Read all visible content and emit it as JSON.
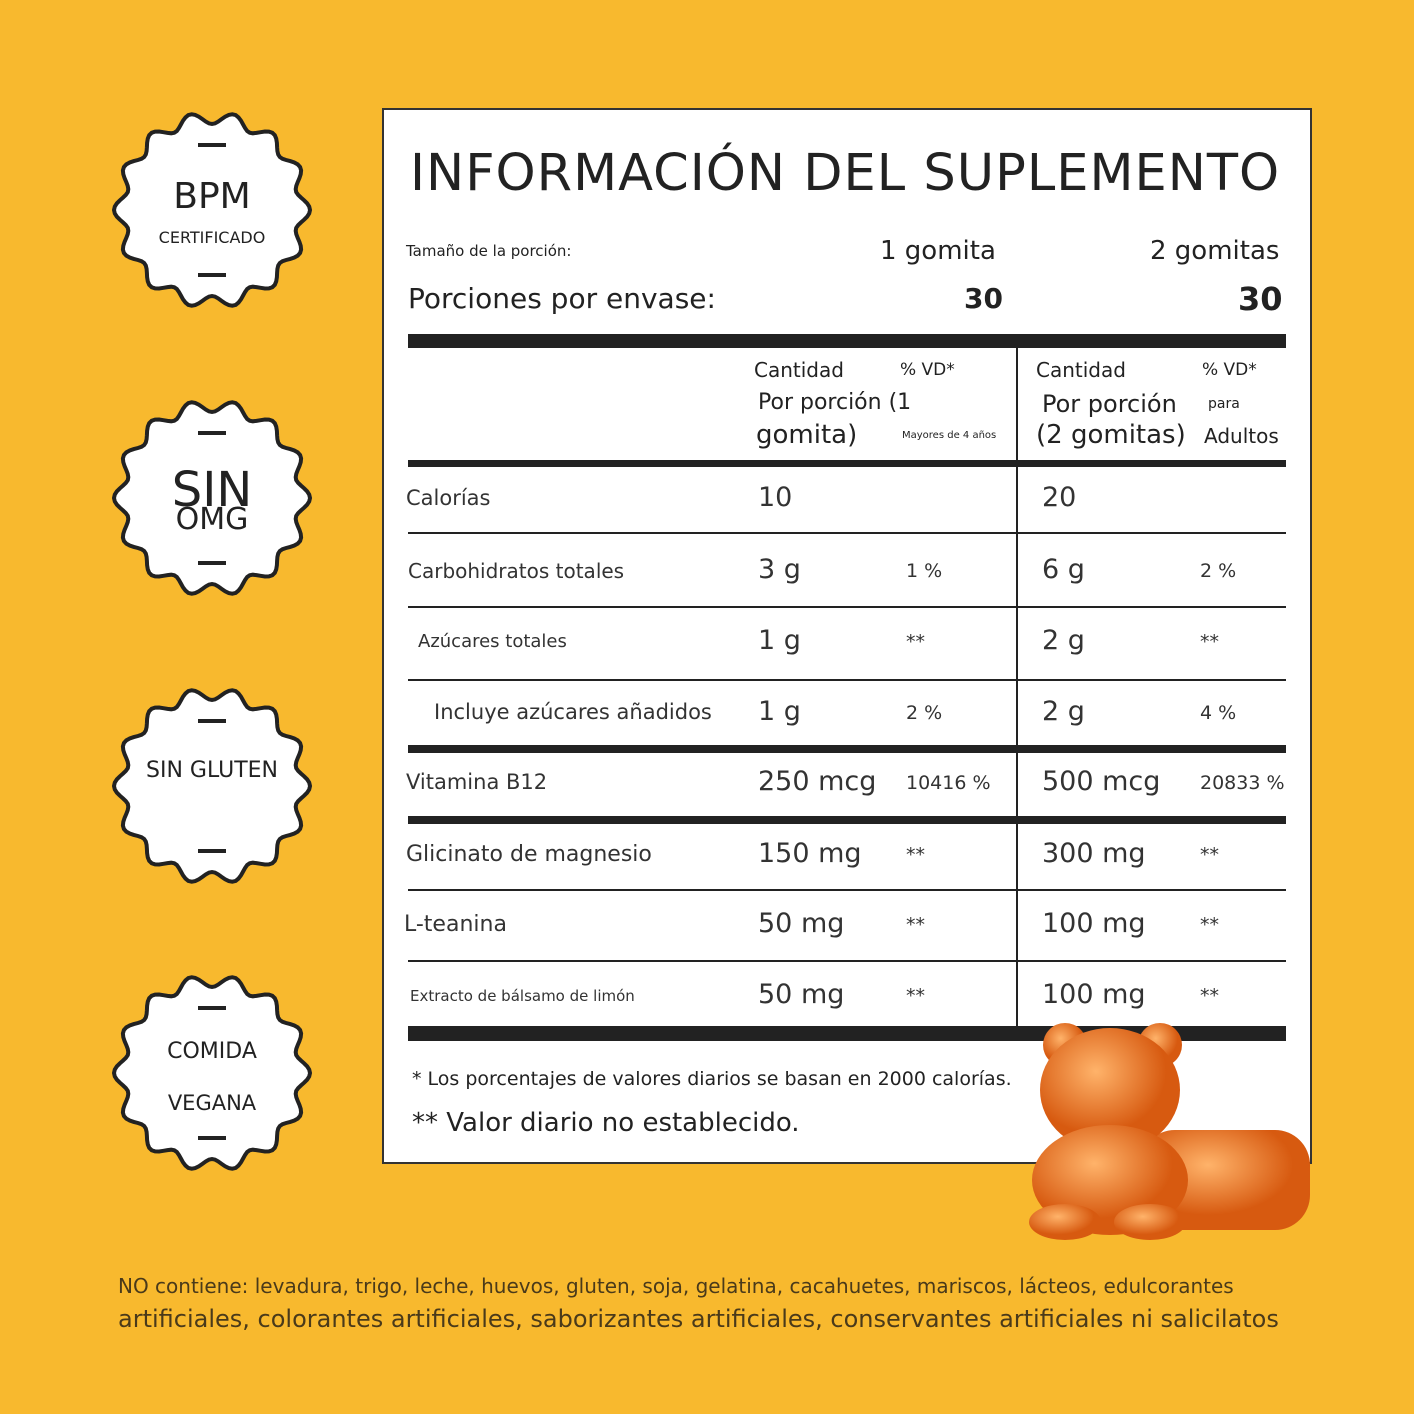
{
  "badges": [
    {
      "title": "BPM",
      "subtitle": "CERTIFICADO"
    },
    {
      "title": "SIN",
      "subtitle": "OMG"
    },
    {
      "title": "SIN GLUTEN"
    },
    {
      "title": "COMIDA",
      "subtitle": "VEGANA"
    }
  ],
  "panel": {
    "title": "INFORMACIÓN DEL SUPLEMENTO",
    "serving_label": "Tamaño de la porción:",
    "serving_1": "1 gomita",
    "serving_2": "2 gomitas",
    "servings_label": "Porciones por envase:",
    "servings_1": "30",
    "servings_2": "30",
    "header_1": {
      "amount": "Cantidad",
      "dv": "% VD*",
      "per_1": "Por porción (1",
      "per_2": "gomita)",
      "note": "Mayores de 4 años"
    },
    "header_2": {
      "amount": "Cantidad",
      "dv": "% VD*",
      "per_1": "Por porción",
      "per_2": "(2 gomitas)",
      "note_1": "para",
      "note_2": "Adultos"
    },
    "rows": [
      {
        "name": "Calorías",
        "amount_1": "10",
        "amount_2": "20"
      },
      {
        "name": "Carbohidratos totales",
        "amount_1": "3 g",
        "dv_1": "1 %",
        "amount_2": "6 g",
        "dv_2": "2 %"
      },
      {
        "name": "Azúcares totales",
        "amount_1": "1 g",
        "dv_1": "**",
        "amount_2": "2 g",
        "dv_2": "**"
      },
      {
        "name": "Incluye azúcares añadidos",
        "amount_1": "1 g",
        "dv_1": "2 %",
        "amount_2": "2 g",
        "dv_2": "4 %"
      },
      {
        "name": "Vitamina B12",
        "amount_1": "250 mcg",
        "dv_1": "10416 %",
        "amount_2": "500 mcg",
        "dv_2": "20833 %"
      },
      {
        "name": "Glicinato de magnesio",
        "amount_1": "150 mg",
        "dv_1": "**",
        "amount_2": "300 mg",
        "dv_2": "**"
      },
      {
        "name": "L-teanina",
        "amount_1": "50 mg",
        "dv_1": "**",
        "amount_2": "100 mg",
        "dv_2": "**"
      },
      {
        "name": "Extracto de bálsamo de limón",
        "amount_1": "50 mg",
        "dv_1": "**",
        "amount_2": "100 mg",
        "dv_2": "**"
      }
    ],
    "footnote_1": "* Los porcentajes de valores diarios se basan en 2000 calorías.",
    "footnote_2": "** Valor diario no establecido."
  },
  "disclaimer": {
    "line_1": "NO contiene: levadura, trigo, leche, huevos, gluten, soja, gelatina, cacahuetes, mariscos, lácteos, edulcorantes",
    "line_2": "artificiales, colorantes artificiales, saborizantes artificiales, conservantes artificiales ni salicilatos"
  }
}
